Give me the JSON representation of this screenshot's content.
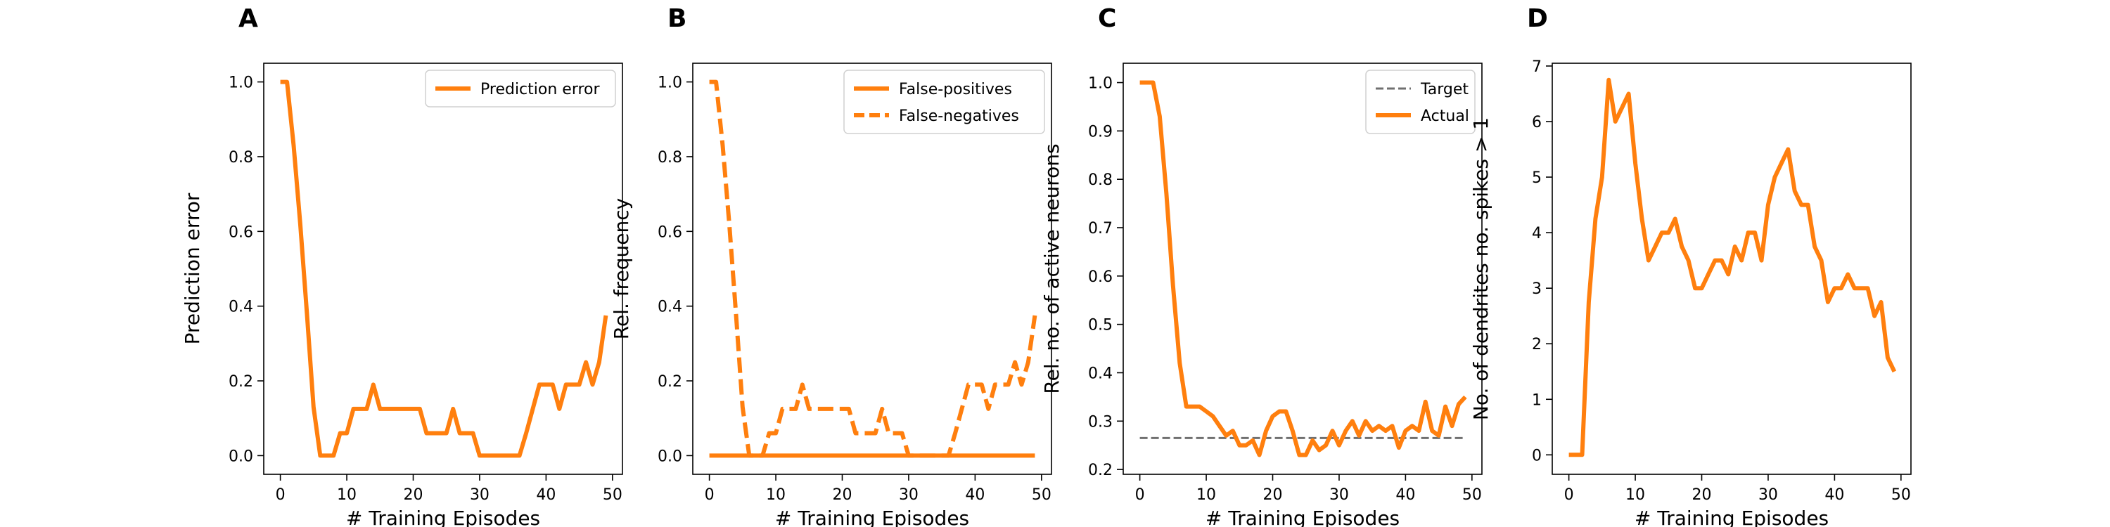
{
  "chart_data": [
    {
      "panel": "A",
      "type": "line",
      "title": "",
      "xlabel": "# Training Episodes",
      "ylabel": "Prediction error",
      "xlim": [
        -2.5,
        51.5
      ],
      "ylim": [
        -0.05,
        1.05
      ],
      "xticks": [
        0,
        10,
        20,
        30,
        40,
        50
      ],
      "yticks": [
        0.0,
        0.2,
        0.4,
        0.6,
        0.8,
        1.0
      ],
      "ytick_labels": [
        "0.0",
        "0.2",
        "0.4",
        "0.6",
        "0.8",
        "1.0"
      ],
      "legend": "top-right",
      "grid": false,
      "series": [
        {
          "name": "Prediction error",
          "color": "#ff7f0e",
          "style": "solid",
          "x": [
            0,
            1,
            2,
            3,
            4,
            5,
            6,
            7,
            8,
            9,
            10,
            11,
            12,
            13,
            14,
            15,
            16,
            17,
            18,
            19,
            20,
            21,
            22,
            23,
            24,
            25,
            26,
            27,
            28,
            29,
            30,
            31,
            32,
            33,
            34,
            35,
            36,
            37,
            38,
            39,
            40,
            41,
            42,
            43,
            44,
            45,
            46,
            47,
            48,
            49
          ],
          "y": [
            1.0,
            1.0,
            0.83,
            0.62,
            0.38,
            0.13,
            0.0,
            0.0,
            0.0,
            0.06,
            0.06,
            0.125,
            0.125,
            0.125,
            0.19,
            0.125,
            0.125,
            0.125,
            0.125,
            0.125,
            0.125,
            0.125,
            0.06,
            0.06,
            0.06,
            0.06,
            0.125,
            0.06,
            0.06,
            0.06,
            0.0,
            0.0,
            0.0,
            0.0,
            0.0,
            0.0,
            0.0,
            0.06,
            0.125,
            0.19,
            0.19,
            0.19,
            0.125,
            0.19,
            0.19,
            0.19,
            0.25,
            0.19,
            0.25,
            0.375
          ]
        }
      ]
    },
    {
      "panel": "B",
      "type": "line",
      "title": "",
      "xlabel": "# Training Episodes",
      "ylabel": "Rel. frequency",
      "xlim": [
        -2.5,
        51.5
      ],
      "ylim": [
        -0.05,
        1.05
      ],
      "xticks": [
        0,
        10,
        20,
        30,
        40,
        50
      ],
      "yticks": [
        0.0,
        0.2,
        0.4,
        0.6,
        0.8,
        1.0
      ],
      "ytick_labels": [
        "0.0",
        "0.2",
        "0.4",
        "0.6",
        "0.8",
        "1.0"
      ],
      "legend": "top-right",
      "grid": false,
      "series": [
        {
          "name": "False-positives",
          "color": "#ff7f0e",
          "style": "solid",
          "x": [
            0,
            1,
            2,
            3,
            4,
            5,
            6,
            7,
            8,
            9,
            10,
            11,
            12,
            13,
            14,
            15,
            16,
            17,
            18,
            19,
            20,
            21,
            22,
            23,
            24,
            25,
            26,
            27,
            28,
            29,
            30,
            31,
            32,
            33,
            34,
            35,
            36,
            37,
            38,
            39,
            40,
            41,
            42,
            43,
            44,
            45,
            46,
            47,
            48,
            49
          ],
          "y": [
            0,
            0,
            0,
            0,
            0,
            0,
            0,
            0,
            0,
            0,
            0,
            0,
            0,
            0,
            0,
            0,
            0,
            0,
            0,
            0,
            0,
            0,
            0,
            0,
            0,
            0,
            0,
            0,
            0,
            0,
            0,
            0,
            0,
            0,
            0,
            0,
            0,
            0,
            0,
            0,
            0,
            0,
            0,
            0,
            0,
            0,
            0,
            0,
            0,
            0
          ]
        },
        {
          "name": "False-negatives",
          "color": "#ff7f0e",
          "style": "dashed",
          "x": [
            0,
            1,
            2,
            3,
            4,
            5,
            6,
            7,
            8,
            9,
            10,
            11,
            12,
            13,
            14,
            15,
            16,
            17,
            18,
            19,
            20,
            21,
            22,
            23,
            24,
            25,
            26,
            27,
            28,
            29,
            30,
            31,
            32,
            33,
            34,
            35,
            36,
            37,
            38,
            39,
            40,
            41,
            42,
            43,
            44,
            45,
            46,
            47,
            48,
            49
          ],
          "y": [
            1.0,
            1.0,
            0.83,
            0.62,
            0.38,
            0.13,
            0.0,
            0.0,
            0.0,
            0.06,
            0.06,
            0.125,
            0.125,
            0.125,
            0.19,
            0.125,
            0.125,
            0.125,
            0.125,
            0.125,
            0.125,
            0.125,
            0.06,
            0.06,
            0.06,
            0.06,
            0.125,
            0.06,
            0.06,
            0.06,
            0.0,
            0.0,
            0.0,
            0.0,
            0.0,
            0.0,
            0.0,
            0.06,
            0.125,
            0.19,
            0.19,
            0.19,
            0.125,
            0.19,
            0.19,
            0.19,
            0.25,
            0.19,
            0.25,
            0.375
          ]
        }
      ]
    },
    {
      "panel": "C",
      "type": "line",
      "title": "",
      "xlabel": "# Training Episodes",
      "ylabel": "Rel. no. of active neurons",
      "xlim": [
        -2.5,
        51.5
      ],
      "ylim": [
        0.19,
        1.04
      ],
      "xticks": [
        0,
        10,
        20,
        30,
        40,
        50
      ],
      "yticks": [
        0.2,
        0.3,
        0.4,
        0.5,
        0.6,
        0.7,
        0.8,
        0.9,
        1.0
      ],
      "ytick_labels": [
        "0.2",
        "0.3",
        "0.4",
        "0.5",
        "0.6",
        "0.7",
        "0.8",
        "0.9",
        "1.0"
      ],
      "legend": "top-right",
      "grid": false,
      "series": [
        {
          "name": "Target",
          "color": "#707070",
          "style": "dashed",
          "x": [
            0,
            49
          ],
          "y": [
            0.265,
            0.265
          ]
        },
        {
          "name": "Actual",
          "color": "#ff7f0e",
          "style": "solid",
          "x": [
            0,
            1,
            2,
            3,
            4,
            5,
            6,
            7,
            8,
            9,
            10,
            11,
            12,
            13,
            14,
            15,
            16,
            17,
            18,
            19,
            20,
            21,
            22,
            23,
            24,
            25,
            26,
            27,
            28,
            29,
            30,
            31,
            32,
            33,
            34,
            35,
            36,
            37,
            38,
            39,
            40,
            41,
            42,
            43,
            44,
            45,
            46,
            47,
            48,
            49
          ],
          "y": [
            1.0,
            1.0,
            1.0,
            0.93,
            0.77,
            0.58,
            0.42,
            0.33,
            0.33,
            0.33,
            0.32,
            0.31,
            0.29,
            0.27,
            0.28,
            0.25,
            0.25,
            0.26,
            0.23,
            0.28,
            0.31,
            0.32,
            0.32,
            0.28,
            0.23,
            0.23,
            0.26,
            0.24,
            0.25,
            0.28,
            0.25,
            0.28,
            0.3,
            0.27,
            0.3,
            0.28,
            0.29,
            0.28,
            0.29,
            0.245,
            0.28,
            0.29,
            0.28,
            0.34,
            0.28,
            0.27,
            0.33,
            0.29,
            0.335,
            0.35
          ]
        }
      ]
    },
    {
      "panel": "D",
      "type": "line",
      "title": "",
      "xlabel": "# Training Episodes",
      "ylabel": "No. of dendrites no. spikes > 1",
      "xlim": [
        -2.5,
        51.5
      ],
      "ylim": [
        -0.35,
        7.05
      ],
      "xticks": [
        0,
        10,
        20,
        30,
        40,
        50
      ],
      "yticks": [
        0,
        1,
        2,
        3,
        4,
        5,
        6,
        7
      ],
      "ytick_labels": [
        "0",
        "1",
        "2",
        "3",
        "4",
        "5",
        "6",
        "7"
      ],
      "legend": "none",
      "grid": false,
      "series": [
        {
          "color": "#ff7f0e",
          "style": "solid",
          "x": [
            0,
            1,
            2,
            3,
            4,
            5,
            6,
            7,
            8,
            9,
            10,
            11,
            12,
            13,
            14,
            15,
            16,
            17,
            18,
            19,
            20,
            21,
            22,
            23,
            24,
            25,
            26,
            27,
            28,
            29,
            30,
            31,
            32,
            33,
            34,
            35,
            36,
            37,
            38,
            39,
            40,
            41,
            42,
            43,
            44,
            45,
            46,
            47,
            48,
            49
          ],
          "y": [
            0,
            0,
            0,
            2.75,
            4.25,
            5.0,
            6.75,
            6.0,
            6.25,
            6.5,
            5.25,
            4.25,
            3.5,
            3.75,
            4.0,
            4.0,
            4.25,
            3.75,
            3.5,
            3.0,
            3.0,
            3.25,
            3.5,
            3.5,
            3.25,
            3.75,
            3.5,
            4.0,
            4.0,
            3.5,
            4.5,
            5.0,
            5.25,
            5.5,
            4.75,
            4.5,
            4.5,
            3.75,
            3.5,
            2.75,
            3.0,
            3.0,
            3.25,
            3.0,
            3.0,
            3.0,
            2.5,
            2.75,
            1.75,
            1.5
          ]
        }
      ]
    }
  ]
}
